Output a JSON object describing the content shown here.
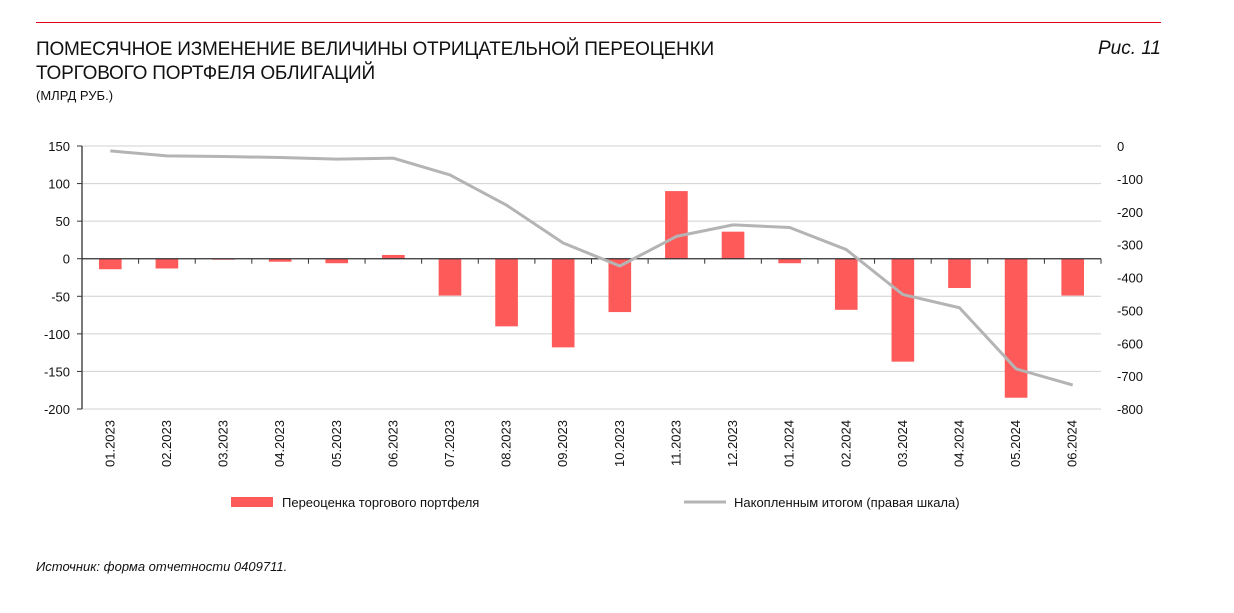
{
  "header": {
    "title_line1": "Помесячное изменение величины отрицательной переоценки",
    "title_line2": "торгового портфеля облигаций",
    "subtitle": "(млрд руб.)",
    "figure_label": "Рис. 11"
  },
  "source": "Источник: форма отчетности 0409711.",
  "colors": {
    "bars": "#ff5a5a",
    "line": "#b4b4b4",
    "accent": "#e2001a"
  },
  "chart_data": {
    "type": "bar+line",
    "categories": [
      "01.2023",
      "02.2023",
      "03.2023",
      "04.2023",
      "05.2023",
      "06.2023",
      "07.2023",
      "08.2023",
      "09.2023",
      "10.2023",
      "11.2023",
      "12.2023",
      "01.2024",
      "02.2024",
      "03.2024",
      "04.2024",
      "05.2024",
      "06.2024"
    ],
    "series": [
      {
        "name": "Переоценка торгового портфеля",
        "type": "bar",
        "axis": "left",
        "values": [
          -14,
          -13,
          -1,
          -4,
          -6,
          5,
          -49,
          -90,
          -118,
          -71,
          90,
          36,
          -6,
          -68,
          -137,
          -39,
          -185,
          -49
        ]
      },
      {
        "name": "Накопленным итогом (правая шкала)",
        "type": "line",
        "axis": "right",
        "values": [
          -15,
          -30,
          -32,
          -35,
          -40,
          -37,
          -88,
          -180,
          -295,
          -365,
          -275,
          -240,
          -248,
          -315,
          -452,
          -492,
          -678,
          -727
        ]
      }
    ],
    "left_axis": {
      "ylim": [
        -200,
        150
      ],
      "ticks": [
        150,
        100,
        50,
        0,
        -50,
        -100,
        -150,
        -200
      ]
    },
    "right_axis": {
      "ylim": [
        -800,
        0
      ],
      "ticks": [
        0,
        -100,
        -200,
        -300,
        -400,
        -500,
        -600,
        -700,
        -800
      ]
    },
    "grid": true,
    "legend": "bottom"
  }
}
